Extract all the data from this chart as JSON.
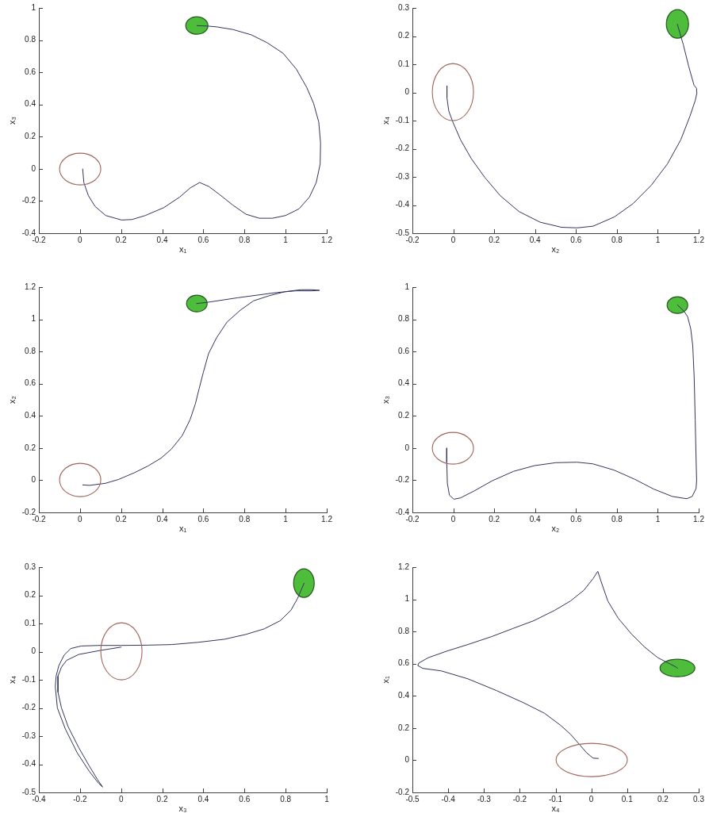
{
  "chart_data": [
    {
      "type": "line",
      "xlabel": "x₁",
      "ylabel": "x₃",
      "xlim": [
        -0.2,
        1.2
      ],
      "xticks": [
        -0.2,
        0,
        0.2,
        0.4,
        0.6,
        0.8,
        1,
        1.2
      ],
      "ylim": [
        -0.4,
        1
      ],
      "yticks": [
        -0.4,
        -0.2,
        0,
        0.2,
        0.4,
        0.6,
        0.8,
        1
      ],
      "series": [
        {
          "color": "#33355e",
          "x": [
            0.013,
            0.019,
            0.041,
            0.073,
            0.125,
            0.202,
            0.253,
            0.318,
            0.408,
            0.485,
            0.537,
            0.582,
            0.627,
            0.678,
            0.743,
            0.807,
            0.872,
            0.936,
            1.0,
            1.065,
            1.116,
            1.149,
            1.168,
            1.17,
            1.161,
            1.136,
            1.103,
            1.052,
            0.988,
            0.91,
            0.833,
            0.743,
            0.666,
            0.623,
            0.569
          ],
          "values": [
            0,
            -0.087,
            -0.167,
            -0.233,
            -0.29,
            -0.318,
            -0.315,
            -0.29,
            -0.241,
            -0.175,
            -0.118,
            -0.085,
            -0.11,
            -0.159,
            -0.225,
            -0.282,
            -0.307,
            -0.307,
            -0.29,
            -0.249,
            -0.175,
            -0.085,
            0.03,
            0.161,
            0.292,
            0.407,
            0.505,
            0.62,
            0.718,
            0.784,
            0.833,
            0.866,
            0.882,
            0.887,
            0.89
          ]
        }
      ]
    },
    {
      "type": "line",
      "xlabel": "x₂",
      "ylabel": "x₄",
      "xlim": [
        -0.2,
        1.2
      ],
      "xticks": [
        -0.2,
        0,
        0.2,
        0.4,
        0.6,
        0.8,
        1,
        1.2
      ],
      "ylim": [
        -0.5,
        0.3
      ],
      "yticks": [
        -0.5,
        -0.4,
        -0.3,
        -0.2,
        -0.1,
        0,
        0.1,
        0.2,
        0.3
      ],
      "series": [
        {
          "color": "#33355e",
          "x": [
            -0.031,
            -0.031,
            -0.022,
            -0.003,
            0.036,
            0.088,
            0.153,
            0.23,
            0.321,
            0.425,
            0.529,
            0.606,
            0.684,
            0.788,
            0.879,
            0.969,
            1.047,
            1.112,
            1.157,
            1.183,
            1.192,
            1.19,
            1.177,
            1.151,
            1.125,
            1.112,
            1.096
          ],
          "values": [
            0.023,
            -0.019,
            -0.066,
            -0.104,
            -0.169,
            -0.235,
            -0.301,
            -0.367,
            -0.423,
            -0.461,
            -0.479,
            -0.481,
            -0.475,
            -0.442,
            -0.395,
            -0.329,
            -0.254,
            -0.169,
            -0.085,
            -0.029,
            0.0,
            0.014,
            0.026,
            0.093,
            0.169,
            0.201,
            0.242
          ]
        }
      ]
    },
    {
      "type": "line",
      "xlabel": "x₁",
      "ylabel": "x₂",
      "xlim": [
        -0.2,
        1.2
      ],
      "xticks": [
        -0.2,
        0,
        0.2,
        0.4,
        0.6,
        0.8,
        1,
        1.2
      ],
      "ylim": [
        -0.2,
        1.2
      ],
      "yticks": [
        -0.2,
        0,
        0.2,
        0.4,
        0.6,
        0.8,
        1,
        1.2
      ],
      "series": [
        {
          "color": "#33355e",
          "x": [
            0.012,
            0.047,
            0.124,
            0.188,
            0.265,
            0.33,
            0.394,
            0.445,
            0.497,
            0.535,
            0.561,
            0.58,
            0.6,
            0.625,
            0.664,
            0.715,
            0.78,
            0.844,
            0.921,
            0.998,
            1.075,
            1.127,
            1.165,
            1.127,
            1.05,
            0.96,
            0.895,
            0.767,
            0.621,
            0.567
          ],
          "values": [
            -0.029,
            -0.032,
            -0.019,
            0.005,
            0.047,
            0.088,
            0.137,
            0.194,
            0.277,
            0.375,
            0.474,
            0.572,
            0.671,
            0.786,
            0.885,
            0.983,
            1.057,
            1.115,
            1.147,
            1.172,
            1.184,
            1.184,
            1.18,
            1.177,
            1.177,
            1.167,
            1.156,
            1.134,
            1.106,
            1.098
          ]
        }
      ]
    },
    {
      "type": "line",
      "xlabel": "x₂",
      "ylabel": "x₃",
      "xlim": [
        -0.2,
        1.2
      ],
      "xticks": [
        -0.2,
        0,
        0.2,
        0.4,
        0.6,
        0.8,
        1,
        1.2
      ],
      "ylim": [
        -0.4,
        1
      ],
      "yticks": [
        -0.4,
        -0.2,
        0,
        0.2,
        0.4,
        0.6,
        0.8,
        1
      ],
      "series": [
        {
          "color": "#33355e",
          "x": [
            -0.032,
            -0.032,
            -0.029,
            -0.019,
            0.003,
            0.035,
            0.1,
            0.191,
            0.294,
            0.398,
            0.501,
            0.605,
            0.682,
            0.786,
            0.889,
            0.98,
            1.071,
            1.142,
            1.168,
            1.187,
            1.19,
            1.187,
            1.183,
            1.178,
            1.171,
            1.161,
            1.146,
            1.129,
            1.096
          ],
          "values": [
            0,
            -0.088,
            -0.219,
            -0.293,
            -0.318,
            -0.31,
            -0.268,
            -0.203,
            -0.145,
            -0.109,
            -0.091,
            -0.088,
            -0.098,
            -0.137,
            -0.195,
            -0.255,
            -0.301,
            -0.315,
            -0.301,
            -0.252,
            -0.203,
            -0.055,
            0.175,
            0.438,
            0.635,
            0.742,
            0.816,
            0.849,
            0.89
          ]
        }
      ]
    },
    {
      "type": "line",
      "xlabel": "x₃",
      "ylabel": "x₄",
      "xlim": [
        -0.4,
        1
      ],
      "xticks": [
        -0.4,
        -0.2,
        0,
        0.2,
        0.4,
        0.6,
        0.8,
        1
      ],
      "ylim": [
        -0.5,
        0.3
      ],
      "yticks": [
        -0.5,
        -0.4,
        -0.3,
        -0.2,
        -0.1,
        0,
        0.1,
        0.2,
        0.3
      ],
      "series": [
        {
          "color": "#33355e",
          "x": [
            0.0,
            -0.103,
            -0.206,
            -0.265,
            -0.29,
            -0.307,
            -0.307,
            -0.29,
            -0.258,
            -0.206,
            -0.155,
            -0.116,
            -0.09,
            -0.11,
            -0.155,
            -0.213,
            -0.271,
            -0.31,
            -0.32,
            -0.316,
            -0.303,
            -0.277,
            -0.245,
            -0.194,
            -0.103,
            0.0,
            0.129,
            0.245,
            0.374,
            0.503,
            0.606,
            0.697,
            0.774,
            0.826,
            0.858,
            0.89
          ],
          "values": [
            0.016,
            0.004,
            -0.01,
            -0.031,
            -0.055,
            -0.087,
            -0.144,
            -0.2,
            -0.266,
            -0.341,
            -0.406,
            -0.453,
            -0.481,
            -0.467,
            -0.425,
            -0.36,
            -0.275,
            -0.2,
            -0.125,
            -0.087,
            -0.05,
            -0.012,
            0.011,
            0.02,
            0.022,
            0.022,
            0.023,
            0.025,
            0.033,
            0.044,
            0.061,
            0.081,
            0.11,
            0.147,
            0.189,
            0.243
          ]
        }
      ]
    },
    {
      "type": "line",
      "xlabel": "x₄",
      "ylabel": "x₁",
      "xlim": [
        -0.5,
        0.3
      ],
      "xticks": [
        -0.5,
        -0.4,
        -0.3,
        -0.2,
        -0.1,
        0,
        0.1,
        0.2,
        0.3
      ],
      "ylim": [
        -0.2,
        1.2
      ],
      "yticks": [
        -0.2,
        0,
        0.2,
        0.4,
        0.6,
        0.8,
        1,
        1.2
      ],
      "series": [
        {
          "color": "#33355e",
          "x": [
            0.02,
            0.005,
            -0.013,
            -0.032,
            -0.058,
            -0.087,
            -0.131,
            -0.19,
            -0.264,
            -0.345,
            -0.419,
            -0.471,
            -0.485,
            -0.482,
            -0.456,
            -0.404,
            -0.345,
            -0.279,
            -0.22,
            -0.161,
            -0.102,
            -0.058,
            -0.021,
            0.005,
            0.018,
            0.027,
            0.046,
            0.075,
            0.112,
            0.149,
            0.186,
            0.215,
            0.236,
            0.241
          ],
          "values": [
            0.011,
            0.013,
            0.046,
            0.095,
            0.161,
            0.219,
            0.292,
            0.358,
            0.432,
            0.506,
            0.555,
            0.571,
            0.588,
            0.604,
            0.637,
            0.678,
            0.719,
            0.768,
            0.818,
            0.867,
            0.932,
            0.99,
            1.056,
            1.129,
            1.174,
            1.113,
            0.99,
            0.883,
            0.785,
            0.703,
            0.637,
            0.604,
            0.58,
            0.571
          ]
        }
      ]
    }
  ]
}
